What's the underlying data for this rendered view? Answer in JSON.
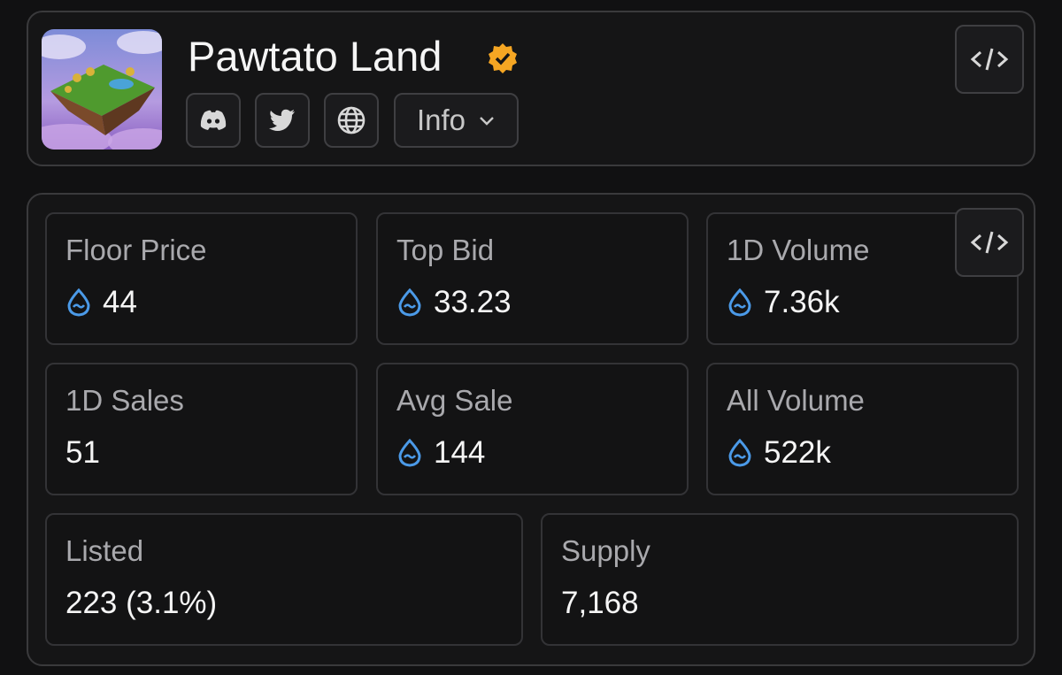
{
  "header": {
    "title": "Pawtato Land",
    "info_label": "Info"
  },
  "stats": [
    {
      "label": "Floor Price",
      "value": "44"
    },
    {
      "label": "Top Bid",
      "value": "33.23"
    },
    {
      "label": "1D Volume",
      "value": "7.36k"
    },
    {
      "label": "1D Sales",
      "value": "51"
    },
    {
      "label": "Avg Sale",
      "value": "144"
    },
    {
      "label": "All Volume",
      "value": "522k"
    },
    {
      "label": "Listed",
      "value": "223 (3.1%)"
    },
    {
      "label": "Supply",
      "value": "7,168"
    }
  ]
}
